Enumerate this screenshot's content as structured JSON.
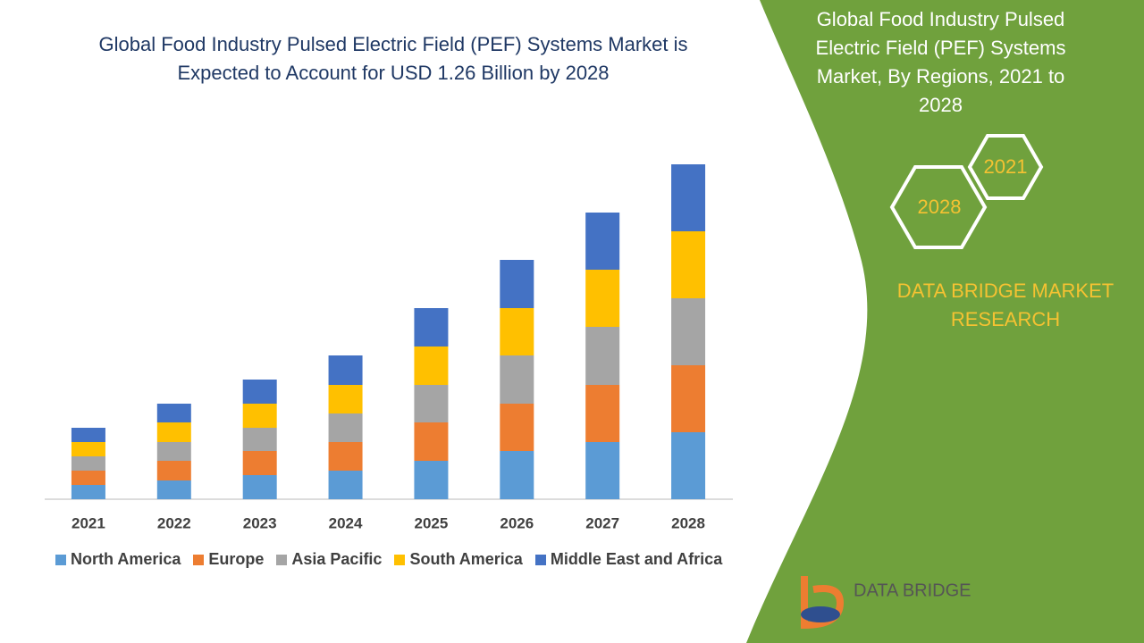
{
  "chart_data": {
    "type": "stacked_bar",
    "title": "Global Food Industry Pulsed Electric Field (PEF) Systems Market is Expected to Account for USD 1.26 Billion by 2028",
    "categories": [
      "2021",
      "2022",
      "2023",
      "2024",
      "2025",
      "2026",
      "2027",
      "2028"
    ],
    "series": [
      {
        "name": "North America",
        "color": "#5b9bd5",
        "values": [
          16,
          21,
          27,
          32,
          43,
          54,
          64,
          75
        ]
      },
      {
        "name": "Europe",
        "color": "#ed7d31",
        "values": [
          16,
          22,
          27,
          32,
          43,
          53,
          64,
          75
        ]
      },
      {
        "name": "Asia Pacific",
        "color": "#a5a5a5",
        "values": [
          16,
          21,
          26,
          32,
          42,
          54,
          65,
          75
        ]
      },
      {
        "name": "South America",
        "color": "#ffc000",
        "values": [
          16,
          22,
          27,
          32,
          43,
          53,
          64,
          75
        ]
      },
      {
        "name": "Middle East and Africa",
        "color": "#4472c4",
        "values": [
          16,
          21,
          27,
          33,
          43,
          54,
          64,
          75
        ]
      }
    ]
  },
  "panel": {
    "title": "Global Food Industry Pulsed Electric Field (PEF) Systems Market, By Regions, 2021 to 2028",
    "hex_top": "2021",
    "hex_bottom": "2028",
    "brand": "DATA BRIDGE MARKET RESEARCH"
  },
  "logo": {
    "text": "DATA BRIDGE"
  }
}
